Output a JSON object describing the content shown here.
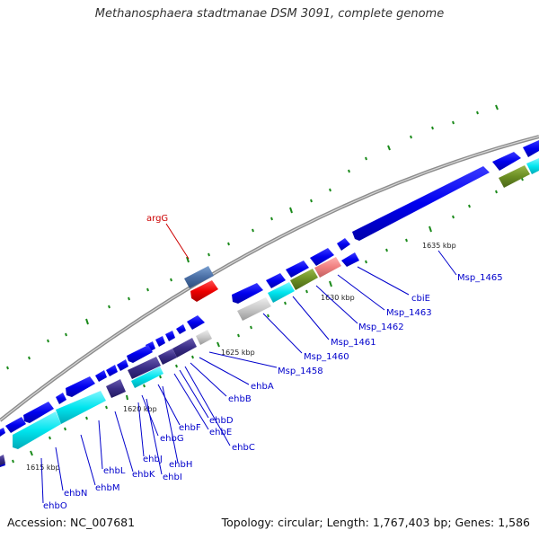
{
  "title": "Methanosphaera stadtmanae DSM 3091, complete genome",
  "footer": {
    "accession": "Accession: NC_007681",
    "stats": "Topology: circular; Length: 1,767,403 bp; Genes: 1,586"
  },
  "scale_labels": [
    "1615 kbp",
    "1620 kbp",
    "1625 kbp",
    "1630 kbp",
    "1635 kbp"
  ],
  "gene_labels": [
    "argG",
    "Msp_1465",
    "cbiE",
    "Msp_1463",
    "Msp_1462",
    "Msp_1461",
    "Msp_1460",
    "Msp_1458",
    "ehbA",
    "ehbB",
    "ehbD",
    "ehbE",
    "ehbC",
    "ehbF",
    "ehbG",
    "ehbH",
    "ehbI",
    "ehbJ",
    "ehbK",
    "ehbL",
    "ehbM",
    "ehbN",
    "ehbO"
  ],
  "colors": {
    "cds_forward": "#0000ee",
    "cyan": "#00e5ee",
    "navy": "#3a2d86",
    "slate": "#4a6fa5",
    "red": "#ee0000",
    "pink": "#f08080",
    "olive": "#6b8e23",
    "grey": "#c8c8c8",
    "backbone": "#8c8c8c",
    "tick": "#1a8a1a",
    "label": "#0000cc",
    "label_red": "#cc0000"
  }
}
